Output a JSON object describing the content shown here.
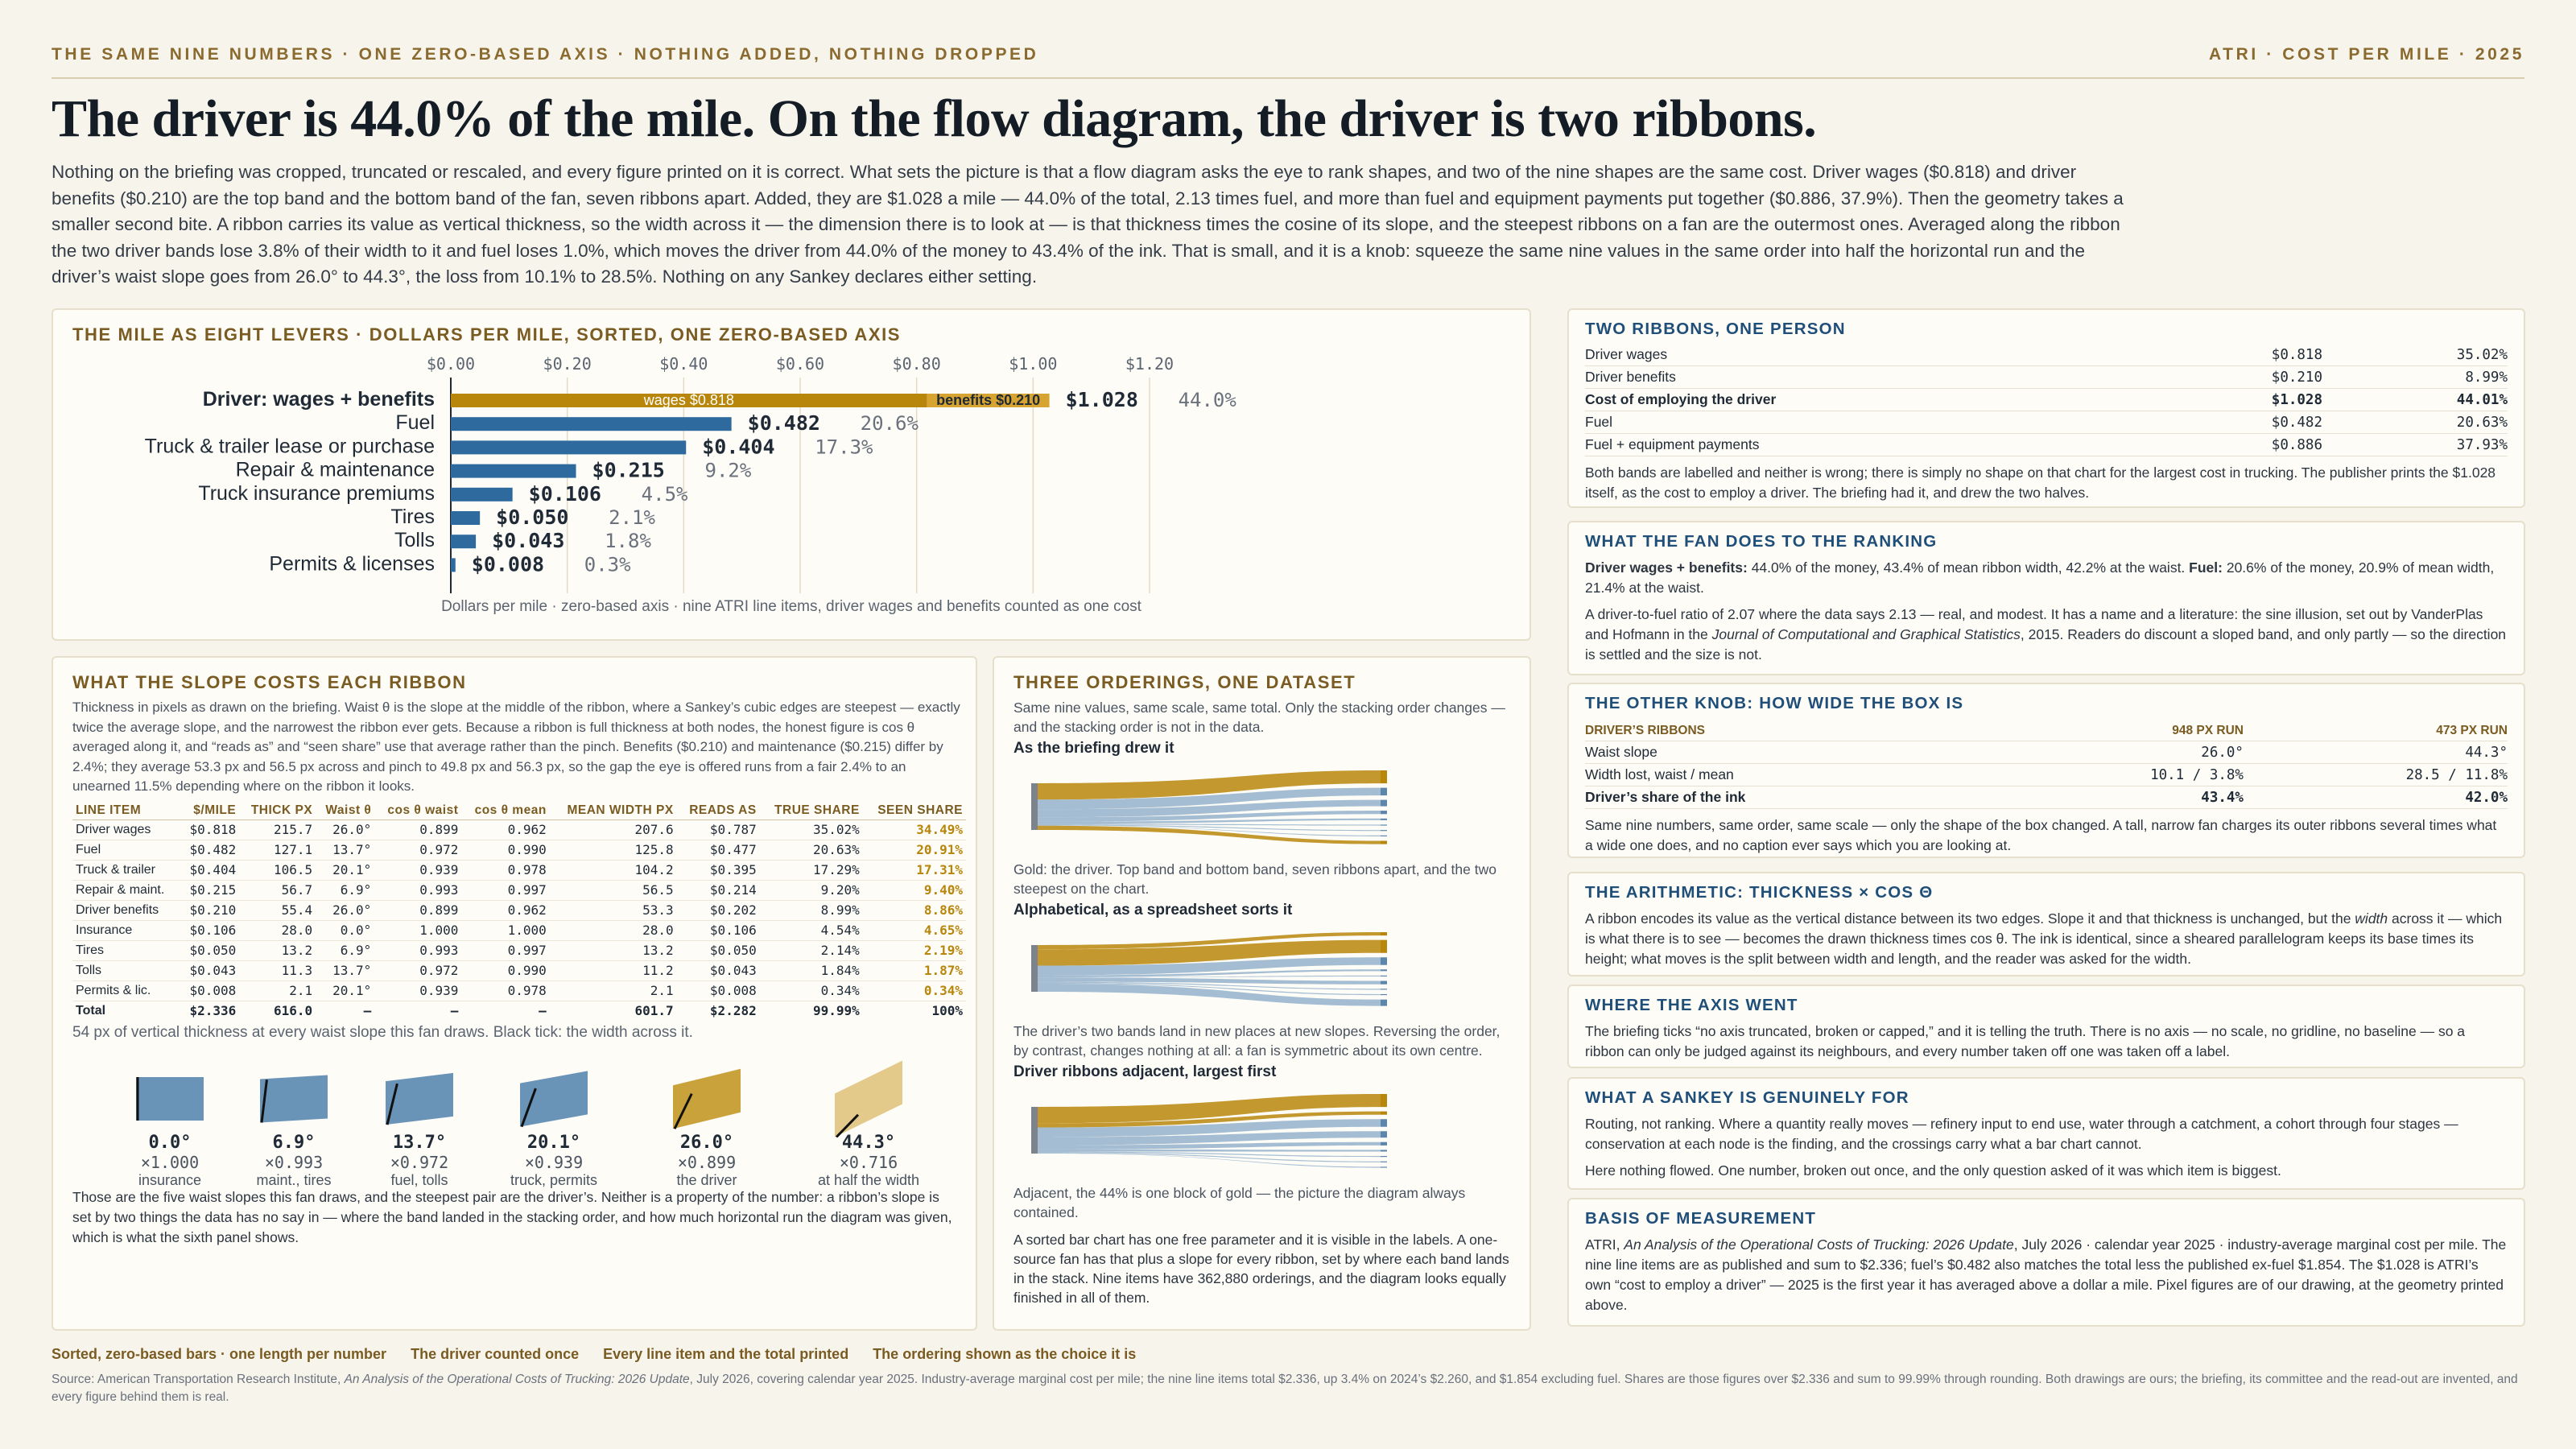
{
  "header": {
    "kicker_left": "THE SAME NINE NUMBERS · ONE ZERO-BASED AXIS · NOTHING ADDED, NOTHING DROPPED",
    "kicker_right": "ATRI · COST PER MILE · 2025",
    "title": "The driver is 44.0% of the mile. On the flow diagram, the driver is two ribbons.",
    "lede": "Nothing on the briefing was cropped, truncated or rescaled, and every figure printed on it is correct. What sets the picture is that a flow diagram asks the eye to rank shapes, and two of the nine shapes are the same cost. Driver wages ($0.818) and driver benefits ($0.210) are the top band and the bottom band of the fan, seven ribbons apart. Added, they are $1.028 a mile — 44.0% of the total, 2.13 times fuel, and more than fuel and equipment payments put together ($0.886, 37.9%). Then the geometry takes a smaller second bite. A ribbon carries its value as vertical thickness, so the width across it — the dimension there is to look at — is that thickness times the cosine of its slope, and the steepest ribbons on a fan are the outermost ones. Averaged along the ribbon the two driver bands lose 3.8% of their width to it and fuel loses 1.0%, which moves the driver from 44.0% of the money to 43.4% of the ink. That is small, and it is a knob: squeeze the same nine values in the same order into half the horizontal run and the driver’s waist slope goes from 26.0° to 44.3°, the loss from 10.1% to 28.5%. Nothing on any Sankey declares either setting."
  },
  "colors": {
    "gold": "#b8860b",
    "blue": "#2e6a9e",
    "ink": "#1f2a36"
  },
  "bar_panel": {
    "title": "THE MILE AS EIGHT LEVERS · DOLLARS PER MILE, SORTED, ONE ZERO-BASED AXIS",
    "footnote": "Dollars per mile · zero-based axis · nine ATRI line items, driver wages and benefits counted as one cost",
    "inbar_wages": "wages $0.818",
    "inbar_benefits": "benefits $0.210"
  },
  "chart_data": {
    "type": "bar",
    "orientation": "horizontal",
    "title": "THE MILE AS EIGHT LEVERS · DOLLARS PER MILE, SORTED, ONE ZERO-BASED AXIS",
    "xlabel": "Dollars per mile",
    "xlim": [
      0,
      1.2
    ],
    "tick_labels": [
      "$0.00",
      "$0.20",
      "$0.40",
      "$0.60",
      "$0.80",
      "$1.00",
      "$1.20"
    ],
    "categories": [
      "Driver: wages + benefits",
      "Fuel",
      "Truck & trailer lease or purchase",
      "Repair & maintenance",
      "Truck insurance premiums",
      "Tires",
      "Tolls",
      "Permits & licenses"
    ],
    "values": [
      1.028,
      0.482,
      0.404,
      0.215,
      0.106,
      0.05,
      0.043,
      0.008
    ],
    "value_labels": [
      "$1.028",
      "$0.482",
      "$0.404",
      "$0.215",
      "$0.106",
      "$0.050",
      "$0.043",
      "$0.008"
    ],
    "share_labels": [
      "44.0%",
      "20.6%",
      "17.3%",
      "9.2%",
      "4.5%",
      "2.1%",
      "1.8%",
      "0.3%"
    ],
    "stacked_first": [
      {
        "name": "wages",
        "value": 0.818
      },
      {
        "name": "benefits",
        "value": 0.21
      }
    ],
    "grid": true
  },
  "right": {
    "c1": {
      "title": "TWO RIBBONS, ONE PERSON",
      "rows": [
        {
          "label": "Driver wages",
          "value": "$0.818",
          "share": "35.02%"
        },
        {
          "label": "Driver benefits",
          "value": "$0.210",
          "share": "8.99%"
        },
        {
          "label": "Cost of employing the driver",
          "value": "$1.028",
          "share": "44.01%"
        },
        {
          "label": "Fuel",
          "value": "$0.482",
          "share": "20.63%"
        },
        {
          "label": "Fuel + equipment payments",
          "value": "$0.886",
          "share": "37.93%"
        }
      ],
      "note": "Both bands are labelled and neither is wrong; there is simply no shape on that chart for the largest cost in trucking. The publisher prints the $1.028 itself, as the cost to employ a driver. The briefing had it, and drew the two halves."
    },
    "c2": {
      "title": "WHAT THE FAN DOES TO THE RANKING",
      "p1_b1": "Driver wages + benefits:",
      "p1_t1": " 44.0% of the money, 43.4% of mean ribbon width, 42.2% at the waist. ",
      "p1_b2": "Fuel:",
      "p1_t2": " 20.6% of the money, 20.9% of mean width, 21.4% at the waist.",
      "p2_a": "A driver-to-fuel ratio of 2.07 where the data says 2.13 — real, and modest. It has a name and a literature: the sine illusion, set out by VanderPlas and Hofmann in the ",
      "p2_i": "Journal of Computational and Graphical Statistics",
      "p2_b": ", 2015. Readers do discount a sloped band, and only partly — so the direction is settled and the size is not."
    },
    "c3": {
      "title": "THE OTHER KNOB: HOW WIDE THE BOX IS",
      "head": [
        "DRIVER’S RIBBONS",
        "948 PX RUN",
        "473 PX RUN"
      ],
      "rows": [
        [
          "Waist slope",
          "26.0°",
          "44.3°"
        ],
        [
          "Width lost, waist / mean",
          "10.1 / 3.8%",
          "28.5 / 11.8%"
        ],
        [
          "Driver’s share of the ink",
          "43.4%",
          "42.0%"
        ]
      ],
      "note": "Same nine numbers, same order, same scale — only the shape of the box changed. A tall, narrow fan charges its outer ribbons several times what a wide one does, and no caption ever says which you are looking at."
    },
    "c4": {
      "title": "THE ARITHMETIC: THICKNESS × COS θ",
      "p_a": "A ribbon encodes its value as the vertical distance between its two edges. Slope it and that thickness is unchanged, but the ",
      "p_i": "width",
      "p_b": " across it — which is what there is to see — becomes the drawn thickness times cos θ. The ink is identical, since a sheared parallelogram keeps its base times its height; what moves is the split between width and length, and the reader was asked for the width."
    },
    "c5": {
      "title": "WHERE THE AXIS WENT",
      "p": "The briefing ticks “no axis truncated, broken or capped,” and it is telling the truth. There is no axis — no scale, no gridline, no baseline — so a ribbon can only be judged against its neighbours, and every number taken off one was taken off a label."
    },
    "c6": {
      "title": "WHAT A SANKEY IS GENUINELY FOR",
      "p1": "Routing, not ranking. Where a quantity really moves — refinery input to end use, water through a catchment, a cohort through four stages — conservation at each node is the finding, and the crossings carry what a bar chart cannot.",
      "p2": "Here nothing flowed. One number, broken out once, and the only question asked of it was which item is biggest."
    },
    "c7": {
      "title": "BASIS OF MEASUREMENT",
      "p_a": "ATRI, ",
      "p_i": "An Analysis of the Operational Costs of Trucking: 2026 Update",
      "p_b": ", July 2026 · calendar year 2025 · industry-average marginal cost per mile. The nine line items are as published and sum to $2.336; fuel’s $0.482 also matches the total less the published ex-fuel $1.854. The $1.028 is ATRI’s own “cost to employ a driver” — 2025 is the first year it has averaged above a dollar a mile. Pixel figures are of our drawing, at the geometry printed above."
    }
  },
  "slope_panel": {
    "title": "WHAT THE SLOPE COSTS EACH RIBBON",
    "intro": "Thickness in pixels as drawn on the briefing. Waist θ is the slope at the middle of the ribbon, where a Sankey’s cubic edges are steepest — exactly twice the average slope, and the narrowest the ribbon ever gets. Because a ribbon is full thickness at both nodes, the honest figure is cos θ averaged along it, and “reads as” and “seen share” use that average rather than the pinch. Benefits ($0.210) and maintenance ($0.215) differ by 2.4%; they average 53.3 px and 56.5 px across and pinch to 49.8 px and 56.3 px, so the gap the eye is offered runs from a fair 2.4% to an unearned 11.5% depending where on the ribbon it looks.",
    "headers": [
      "LINE ITEM",
      "$/MILE",
      "THICK PX",
      "Waist θ",
      "cos θ waist",
      "cos θ mean",
      "MEAN WIDTH PX",
      "READS AS",
      "TRUE SHARE",
      "SEEN SHARE"
    ],
    "rows": [
      [
        "Driver wages",
        "$0.818",
        "215.7",
        "26.0°",
        "0.899",
        "0.962",
        "207.6",
        "$0.787",
        "35.02%",
        "34.49%"
      ],
      [
        "Fuel",
        "$0.482",
        "127.1",
        "13.7°",
        "0.972",
        "0.990",
        "125.8",
        "$0.477",
        "20.63%",
        "20.91%"
      ],
      [
        "Truck & trailer",
        "$0.404",
        "106.5",
        "20.1°",
        "0.939",
        "0.978",
        "104.2",
        "$0.395",
        "17.29%",
        "17.31%"
      ],
      [
        "Repair & maint.",
        "$0.215",
        "56.7",
        "6.9°",
        "0.993",
        "0.997",
        "56.5",
        "$0.214",
        "9.20%",
        "9.40%"
      ],
      [
        "Driver benefits",
        "$0.210",
        "55.4",
        "26.0°",
        "0.899",
        "0.962",
        "53.3",
        "$0.202",
        "8.99%",
        "8.86%"
      ],
      [
        "Insurance",
        "$0.106",
        "28.0",
        "0.0°",
        "1.000",
        "1.000",
        "28.0",
        "$0.106",
        "4.54%",
        "4.65%"
      ],
      [
        "Tires",
        "$0.050",
        "13.2",
        "6.9°",
        "0.993",
        "0.997",
        "13.2",
        "$0.050",
        "2.14%",
        "2.19%"
      ],
      [
        "Tolls",
        "$0.043",
        "11.3",
        "13.7°",
        "0.972",
        "0.990",
        "11.2",
        "$0.043",
        "1.84%",
        "1.87%"
      ],
      [
        "Permits & lic.",
        "$0.008",
        "2.1",
        "20.1°",
        "0.939",
        "0.978",
        "2.1",
        "$0.008",
        "0.34%",
        "0.34%"
      ],
      [
        "Total",
        "$2.336",
        "616.0",
        "—",
        "—",
        "—",
        "601.7",
        "$2.282",
        "99.99%",
        "100%"
      ]
    ],
    "swatch_note": "54 px of vertical thickness at every waist slope this fan draws. Black tick: the width across it.",
    "swatches": [
      {
        "angle": "0.0°",
        "factor": "×1.000",
        "label": "insurance",
        "deg": 0.0
      },
      {
        "angle": "6.9°",
        "factor": "×0.993",
        "label": "maint., tires",
        "deg": 6.9
      },
      {
        "angle": "13.7°",
        "factor": "×0.972",
        "label": "fuel, tolls",
        "deg": 13.7
      },
      {
        "angle": "20.1°",
        "factor": "×0.939",
        "label": "truck, permits",
        "deg": 20.1
      },
      {
        "angle": "26.0°",
        "factor": "×0.899",
        "label": "the driver",
        "deg": 26.0
      },
      {
        "angle": "44.3°",
        "factor": "×0.716",
        "label": "at half the width",
        "deg": 44.3
      }
    ],
    "outro": "Those are the five waist slopes this fan draws, and the steepest pair are the driver’s. Neither is a property of the number: a ribbon’s slope is set by two things the data has no say in — where the band landed in the stacking order, and how much horizontal run the diagram was given, which is what the sixth panel shows."
  },
  "order_panel": {
    "title": "THREE ORDERINGS, ONE DATASET",
    "intro": "Same nine values, same scale, same total. Only the stacking order changes — and the stacking order is not in the data.",
    "s1_title": "As the briefing drew it",
    "s1_cap": "Gold: the driver. Top band and bottom band, seven ribbons apart, and the two steepest on the chart.",
    "s2_title": "Alphabetical, as a spreadsheet sorts it",
    "s2_cap": "The driver’s two bands land in new places at new slopes. Reversing the order, by contrast, changes nothing at all: a fan is symmetric about its own centre.",
    "s3_title": "Driver ribbons adjacent, largest first",
    "s3_cap": "Adjacent, the 44% is one block of gold — the picture the diagram always contained.",
    "outro": "A sorted bar chart has one free parameter and it is visible in the labels. A one-source fan has that plus a slope for every ribbon, set by where each band lands in the stack. Nine items have 362,880 orderings, and the diagram looks equally finished in all of them."
  },
  "footer": {
    "tags": [
      "Sorted, zero-based bars · one length per number",
      "The driver counted once",
      "Every line item and the total printed",
      "The ordering shown as the choice it is"
    ],
    "source_a": "Source: American Transportation Research Institute, ",
    "source_i": "An Analysis of the Operational Costs of Trucking: 2026 Update",
    "source_b": ", July 2026, covering calendar year 2025. Industry-average marginal cost per mile; the nine line items total $2.336, up 3.4% on 2024’s $2.260, and $1.854 excluding fuel. Shares are those figures over $2.336 and sum to 99.99% through rounding. Both drawings are ours; the briefing, its committee and the read-out are invented, and every figure behind them is real."
  }
}
